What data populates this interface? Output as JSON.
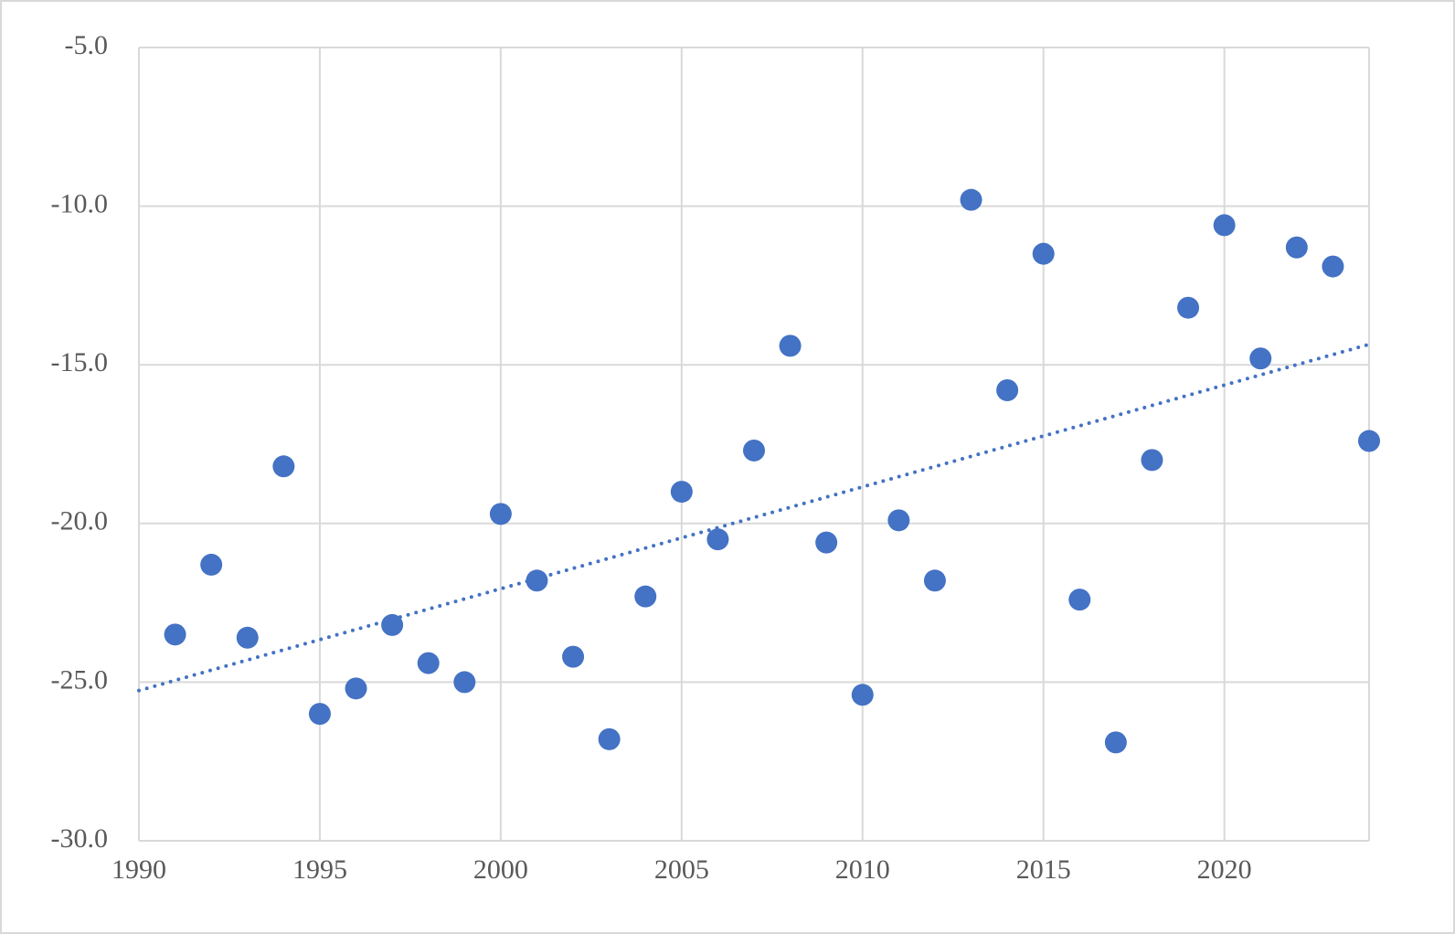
{
  "chart_data": {
    "type": "scatter",
    "color": "#4472c4",
    "trendline": "linear",
    "grid": true,
    "x": [
      1991,
      1992,
      1993,
      1994,
      1995,
      1996,
      1997,
      1998,
      1999,
      2000,
      2001,
      2002,
      2003,
      2004,
      2005,
      2006,
      2007,
      2008,
      2009,
      2010,
      2011,
      2012,
      2013,
      2014,
      2015,
      2016,
      2017,
      2018,
      2019,
      2020,
      2021,
      2022,
      2023,
      2024
    ],
    "values": [
      -23.5,
      -21.3,
      -23.6,
      -18.2,
      -26.0,
      -25.2,
      -23.2,
      -24.4,
      -25.0,
      -19.7,
      -21.8,
      -24.2,
      -26.8,
      -22.3,
      -19.0,
      -20.5,
      -17.7,
      -14.4,
      -20.6,
      -25.4,
      -19.9,
      -21.8,
      -9.8,
      -15.8,
      -11.5,
      -22.4,
      -26.9,
      -18.0,
      -13.2,
      -10.6,
      -14.8,
      -11.3,
      -11.9,
      -17.4
    ],
    "xlim": [
      1990,
      2024
    ],
    "xticks": [
      1990,
      1995,
      2000,
      2005,
      2010,
      2015,
      2020
    ],
    "ylim": [
      -30,
      -5
    ],
    "yticks": [
      {
        "value": -5,
        "label": "-5.0"
      },
      {
        "value": -10,
        "label": "-10.0"
      },
      {
        "value": -15,
        "label": "-15.0"
      },
      {
        "value": -20,
        "label": "-20.0"
      },
      {
        "value": -25,
        "label": "-25.0"
      },
      {
        "value": -30,
        "label": "-30.0"
      }
    ]
  }
}
